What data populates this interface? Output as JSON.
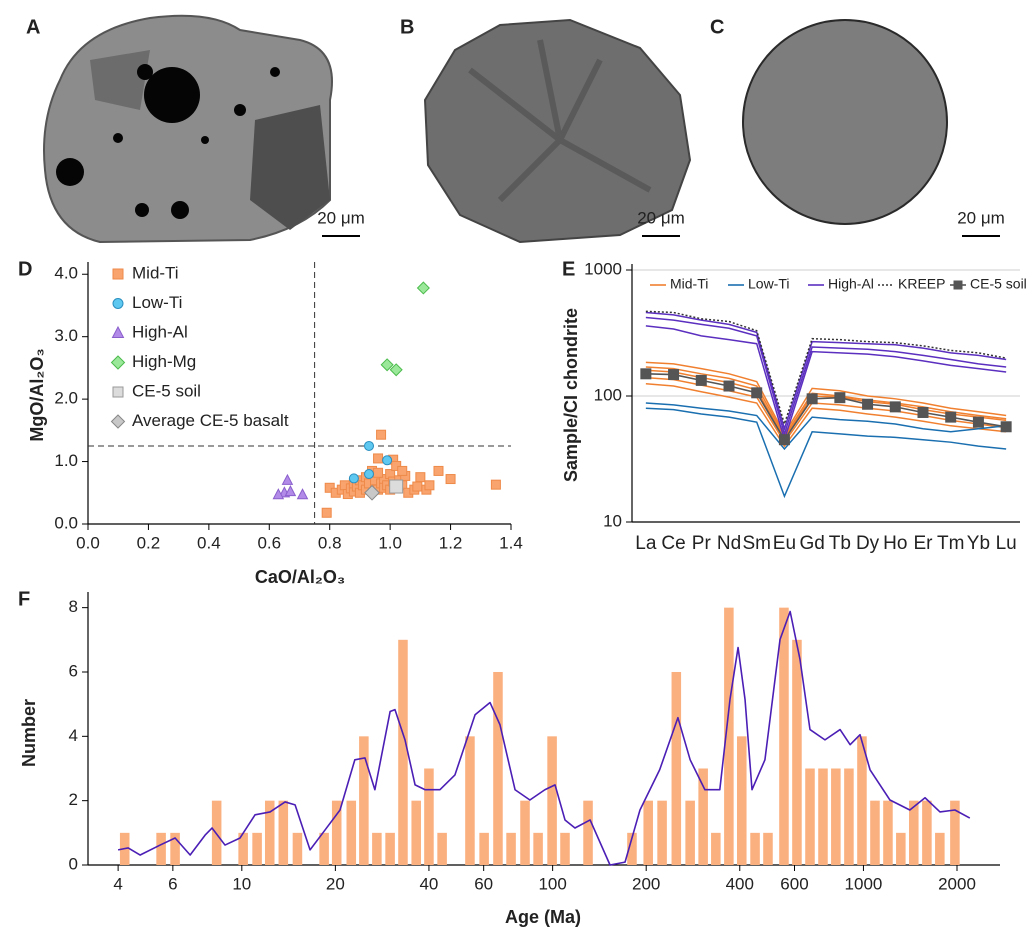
{
  "panels": [
    {
      "label": "A",
      "scale_bar": "20 μm"
    },
    {
      "label": "B",
      "scale_bar": "20 μm"
    },
    {
      "label": "C",
      "scale_bar": "20 μm"
    }
  ],
  "chart_data": [
    {
      "type": "scatter",
      "label": "D",
      "xlabel": "CaO/Al₂O₃",
      "ylabel": "MgO/Al₂O₃",
      "xlim": [
        0,
        1.4
      ],
      "ylim": [
        0,
        4.1
      ],
      "xticks": [
        {
          "value": 0,
          "label": "0.0"
        },
        {
          "value": 0.2,
          "label": "0.2"
        },
        {
          "value": 0.4,
          "label": "0.4"
        },
        {
          "value": 0.6,
          "label": "0.6"
        },
        {
          "value": 0.8,
          "label": "0.8"
        },
        {
          "value": 1.0,
          "label": "1.0"
        },
        {
          "value": 1.2,
          "label": "1.2"
        },
        {
          "value": 1.4,
          "label": "1.4"
        }
      ],
      "yticks": [
        {
          "value": 0,
          "label": "0.0"
        },
        {
          "value": 1,
          "label": "1.0"
        },
        {
          "value": 2,
          "label": "2.0"
        },
        {
          "value": 3,
          "label": "3.0"
        },
        {
          "value": 4,
          "label": "4.0"
        }
      ],
      "vlines": [
        0.75
      ],
      "hlines": [
        1.25
      ],
      "legend": "upper left",
      "series": [
        {
          "name": "Mid-Ti",
          "marker": "square",
          "color": "#f9a46e",
          "edge": "#ee8a4a",
          "x": [
            0.79,
            0.8,
            0.82,
            0.84,
            0.85,
            0.86,
            0.87,
            0.88,
            0.88,
            0.89,
            0.9,
            0.9,
            0.91,
            0.92,
            0.92,
            0.93,
            0.94,
            0.95,
            0.95,
            0.96,
            0.96,
            0.97,
            0.97,
            0.98,
            0.98,
            0.99,
            1.0,
            1.0,
            1.01,
            1.01,
            1.02,
            1.03,
            1.04,
            1.05,
            1.06,
            1.08,
            1.09,
            1.1,
            1.12,
            1.13,
            1.16,
            1.2,
            1.35,
            1.04,
            0.96
          ],
          "values": [
            0.18,
            0.58,
            0.5,
            0.55,
            0.62,
            0.48,
            0.57,
            0.52,
            0.65,
            0.6,
            0.7,
            0.5,
            0.62,
            0.55,
            0.75,
            0.65,
            0.85,
            0.6,
            0.7,
            1.05,
            0.55,
            1.43,
            0.65,
            0.72,
            0.58,
            0.62,
            0.8,
            0.55,
            1.03,
            0.68,
            0.93,
            0.7,
            0.62,
            0.77,
            0.5,
            0.55,
            0.6,
            0.75,
            0.55,
            0.62,
            0.85,
            0.72,
            0.63,
            0.85,
            0.82
          ]
        },
        {
          "name": "Low-Ti",
          "marker": "circle",
          "color": "#5ec8f0",
          "edge": "#2a8fc0",
          "x": [
            0.93,
            0.99,
            0.88,
            0.93
          ],
          "values": [
            1.25,
            1.02,
            0.73,
            0.8
          ]
        },
        {
          "name": "High-Al",
          "marker": "triangle",
          "color": "#b28be8",
          "edge": "#8a5fcc",
          "x": [
            0.66,
            0.65,
            0.67,
            0.71,
            0.63
          ],
          "values": [
            0.7,
            0.5,
            0.52,
            0.47,
            0.47
          ]
        },
        {
          "name": "High-Mg",
          "marker": "diamond",
          "color": "#9be89b",
          "edge": "#4cbb4c",
          "x": [
            1.11,
            0.99,
            1.02
          ],
          "values": [
            3.78,
            2.55,
            2.47
          ]
        },
        {
          "name": "CE-5 soil",
          "marker": "square",
          "color": "#dcdcdc",
          "edge": "#999999",
          "x": [
            1.02
          ],
          "values": [
            0.6
          ]
        },
        {
          "name": "Average CE-5 basalt",
          "marker": "diamond",
          "color": "#c8c8c8",
          "edge": "#888888",
          "x": [
            0.94
          ],
          "values": [
            0.5
          ]
        }
      ]
    },
    {
      "type": "line",
      "label": "E",
      "ylabel": "Sample/CI chondrite",
      "yscale": "log",
      "ylim": [
        10,
        1000
      ],
      "yticks": [
        10,
        100,
        1000
      ],
      "grid": true,
      "legend": "top",
      "categories": [
        "La",
        "Ce",
        "Pr",
        "Nd",
        "Sm",
        "Eu",
        "Gd",
        "Tb",
        "Dy",
        "Ho",
        "Er",
        "Tm",
        "Yb",
        "Lu"
      ],
      "series": [
        {
          "name": "Mid-Ti",
          "color": "#f08030",
          "values": [
            [
              185,
              180,
              165,
              150,
              130,
              50,
              115,
              110,
              100,
              95,
              88,
              80,
              75,
              70
            ],
            [
              170,
              165,
              150,
              138,
              120,
              48,
              105,
              100,
              93,
              88,
              82,
              75,
              70,
              66
            ],
            [
              160,
              155,
              140,
              128,
              112,
              46,
              100,
              98,
              90,
              86,
              78,
              72,
              68,
              64
            ],
            [
              140,
              135,
              122,
              110,
              98,
              43,
              88,
              85,
              80,
              76,
              70,
              64,
              60,
              56
            ],
            [
              125,
              120,
              108,
              98,
              88,
              40,
              80,
              77,
              72,
              68,
              63,
              58,
              55,
              52
            ]
          ]
        },
        {
          "name": "Low-Ti",
          "color": "#1a6fb0",
          "values": [
            [
              88,
              85,
              80,
              76,
              70,
              38,
              68,
              65,
              63,
              60,
              55,
              52,
              55,
              58
            ],
            [
              80,
              78,
              72,
              68,
              62,
              16,
              52,
              50,
              48,
              47,
              45,
              43,
              40,
              38
            ]
          ]
        },
        {
          "name": "High-Al",
          "color": "#5b2fbf",
          "values": [
            [
              460,
              440,
              400,
              370,
              320,
              55,
              270,
              265,
              260,
              255,
              240,
              220,
              210,
              195
            ],
            [
              420,
              400,
              370,
              345,
              300,
              50,
              245,
              240,
              235,
              225,
              210,
              195,
              180,
              170
            ],
            [
              360,
              340,
              300,
              280,
              260,
              45,
              225,
              220,
              215,
              205,
              190,
              175,
              165,
              155
            ]
          ]
        },
        {
          "name": "KREEP",
          "color": "#333333",
          "dash": "2 2",
          "values": [
            [
              470,
              460,
              410,
              390,
              330,
              60,
              285,
              280,
              270,
              265,
              250,
              230,
              220,
              200
            ]
          ]
        },
        {
          "name": "CE-5 soil",
          "color": "#555555",
          "marker": "square",
          "values": [
            [
              150,
              148,
              133,
              120,
              106,
              45,
              95,
              97,
              86,
              82,
              74,
              68,
              62,
              57
            ]
          ]
        }
      ]
    },
    {
      "type": "bar",
      "label": "F",
      "xlabel": "Age (Ma)",
      "ylabel": "Number",
      "xscale": "log",
      "xlim": [
        3.2,
        2750
      ],
      "ylim": [
        0,
        8.3
      ],
      "xticks": [
        4,
        6,
        10,
        20,
        40,
        60,
        100,
        200,
        400,
        600,
        1000,
        2000
      ],
      "yticks": [
        0,
        2,
        4,
        6,
        8
      ],
      "color": "#fbb07f",
      "x": [
        4.2,
        5.5,
        6.1,
        8.3,
        10.1,
        11.2,
        12.3,
        13.6,
        15.1,
        18.4,
        20.2,
        22.5,
        24.7,
        27.2,
        30,
        33,
        36.4,
        40,
        44.1,
        54.2,
        60.2,
        66.7,
        73.5,
        81.5,
        89.8,
        99.6,
        109.6,
        130,
        180,
        203,
        225,
        250,
        277,
        305,
        335,
        369,
        406,
        448,
        493,
        555,
        611,
        673,
        741,
        815,
        898,
        989,
        1089,
        1199,
        1319,
        1452,
        1600,
        1761,
        1969
      ],
      "values": [
        1,
        1,
        1,
        2,
        1,
        1,
        2,
        2,
        1,
        1,
        2,
        2,
        4,
        1,
        1,
        7,
        2,
        3,
        1,
        4,
        1,
        6,
        1,
        2,
        1,
        4,
        1,
        2,
        1,
        2,
        2,
        6,
        2,
        3,
        1,
        8,
        4,
        1,
        1,
        8,
        7,
        3,
        3,
        3,
        3,
        4,
        2,
        2,
        1,
        2,
        2,
        1,
        2
      ],
      "curve": {
        "color": "#4b1fb5",
        "x": [
          4.0,
          4.31,
          4.71,
          5.46,
          6.1,
          6.82,
          7.62,
          8.02,
          8.83,
          9.87,
          11.03,
          12.33,
          13.78,
          14.84,
          16.58,
          18.53,
          20.7,
          23.1,
          24.9,
          26.8,
          30,
          31.1,
          33.5,
          36.1,
          38.9,
          43.4,
          48.5,
          56.3,
          62.9,
          67.7,
          75.7,
          84.5,
          94.4,
          101.8,
          109.6,
          118,
          132,
          153,
          171,
          191,
          221,
          253,
          277,
          309,
          345,
          372,
          395,
          416,
          438,
          482,
          539,
          581,
          625,
          673,
          752,
          841,
          906,
          975,
          1050,
          1217,
          1410,
          1578,
          1763,
          1969,
          2199
        ],
        "values": [
          0.47,
          0.53,
          0.31,
          0.62,
          0.84,
          0.31,
          0.93,
          1.15,
          0.62,
          0.84,
          1.56,
          1.65,
          1.96,
          1.87,
          0.47,
          1.09,
          1.71,
          3.27,
          3.33,
          2.34,
          4.77,
          4.83,
          3.89,
          2.49,
          2.34,
          2.34,
          2.8,
          4.67,
          5.05,
          4.36,
          2.34,
          2.02,
          2.34,
          2.49,
          1.4,
          1.15,
          1.4,
          0,
          0.09,
          1.71,
          2.96,
          4.58,
          3.27,
          2.34,
          2.34,
          5.14,
          6.76,
          5.14,
          2.34,
          3.27,
          7.01,
          7.88,
          6.39,
          4.21,
          3.89,
          4.21,
          3.74,
          4.05,
          2.96,
          2.02,
          1.71,
          2.09,
          1.65,
          1.71,
          1.46
        ]
      }
    }
  ]
}
